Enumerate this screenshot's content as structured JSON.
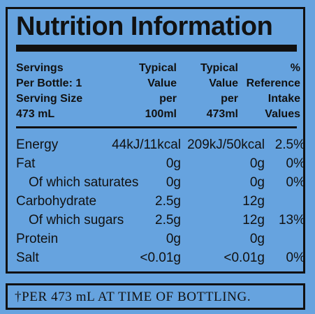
{
  "title": "Nutrition Information",
  "header": {
    "col0": [
      "Servings",
      "Per Bottle: 1",
      "Serving Size",
      "473 mL"
    ],
    "col1": [
      "Typical",
      "Value",
      "per",
      "100ml"
    ],
    "col2": [
      "Typical",
      "Value",
      "per",
      "473ml"
    ],
    "col3": [
      "%",
      "Reference",
      "Intake",
      "Values"
    ]
  },
  "rows": [
    {
      "name": "Energy",
      "v100": "44kJ/11kcal",
      "vserv": "209kJ/50kcal",
      "ri": "2.5%"
    },
    {
      "name": "Fat",
      "v100": "0g",
      "vserv": "0g",
      "ri": "0%"
    },
    {
      "name": "Of which saturates",
      "v100": "0g",
      "vserv": "0g",
      "ri": "0%"
    },
    {
      "name": "Carbohydrate",
      "v100": "2.5g",
      "vserv": "12g",
      "ri": ""
    },
    {
      "name": "Of which sugars",
      "v100": "2.5g",
      "vserv": "12g",
      "ri": "13%"
    },
    {
      "name": "Protein",
      "v100": "0g",
      "vserv": "0g",
      "ri": ""
    },
    {
      "name": "Salt",
      "v100": "<0.01g",
      "vserv": "<0.01g",
      "ri": "0%"
    }
  ],
  "footnote": "†PER 473 mL AT TIME OF BOTTLING.",
  "colors": {
    "background": "#66a3df",
    "ink": "#111111"
  }
}
